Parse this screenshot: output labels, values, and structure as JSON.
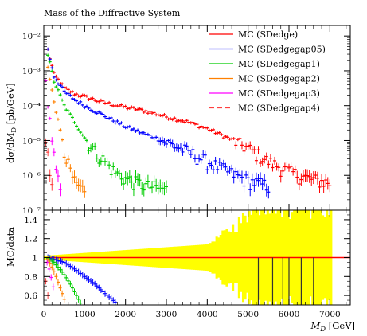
{
  "chart_data": [
    {
      "type": "scatter",
      "title": "Mass of the Diffractive System",
      "ylabel": "dσ/dM_D [pb/GeV]",
      "xlabel": "",
      "xlim": [
        0,
        7500
      ],
      "ylim": [
        1e-07,
        0.02
      ],
      "log_y": true,
      "grid": false,
      "legend_position": "top-right",
      "y_tick_labels": [
        "10⁻⁷",
        "10⁻⁶",
        "10⁻⁵",
        "10⁻⁴",
        "10⁻³",
        "10⁻²"
      ],
      "y_tick_values": [
        1e-07,
        1e-06,
        1e-05,
        0.0001,
        0.001,
        0.01
      ],
      "series": [
        {
          "name": "MC (SDedge)",
          "color": "#ff0000",
          "x": [
            100,
            250,
            500,
            750,
            1000,
            1500,
            2000,
            2500,
            3000,
            3500,
            4000,
            4500,
            5000,
            5500,
            6000,
            6500,
            7000
          ],
          "y": [
            0.004,
            0.0008,
            0.00032,
            0.00022,
            0.00018,
            0.00012,
            9e-05,
            7e-05,
            4.8e-05,
            3.5e-05,
            2.2e-05,
            1.2e-05,
            6e-06,
            2.5e-06,
            1.3e-06,
            8e-07,
            6e-07
          ]
        },
        {
          "name": "MC (SDedgegap05)",
          "color": "#0000ff",
          "x": [
            100,
            250,
            500,
            750,
            1000,
            1500,
            2000,
            2500,
            3000,
            3500,
            4000,
            4500,
            5000,
            5500
          ],
          "y": [
            0.004,
            0.0007,
            0.00025,
            0.00015,
            0.0001,
            5e-05,
            2.5e-05,
            1.5e-05,
            9e-06,
            5e-06,
            2.5e-06,
            1.3e-06,
            7e-07,
            5e-07
          ]
        },
        {
          "name": "MC (SDedgegap1)",
          "color": "#00cc00",
          "x": [
            100,
            250,
            500,
            750,
            1000,
            1250,
            1500,
            1750,
            2000,
            2500,
            3000
          ],
          "y": [
            0.003,
            0.0005,
            0.0001,
            3.5e-05,
            1.2e-05,
            5e-06,
            2.5e-06,
            1.2e-06,
            8e-07,
            5e-07,
            4e-07
          ]
        },
        {
          "name": "MC (SDedgegap2)",
          "color": "#ff8000",
          "x": [
            100,
            200,
            300,
            400,
            500,
            600,
            700,
            800,
            1000
          ],
          "y": [
            0.0012,
            0.0003,
            7e-05,
            2e-05,
            6e-06,
            2e-06,
            8e-07,
            5e-07,
            3e-07
          ]
        },
        {
          "name": "MC (SDedgegap3)",
          "color": "#ff00ff",
          "x": [
            50,
            100,
            150,
            200,
            250,
            300,
            350,
            400
          ],
          "y": [
            0.0005,
            0.0001,
            4e-05,
            1e-05,
            4e-06,
            1.5e-06,
            7e-07,
            4e-07
          ]
        },
        {
          "name": "MC (SDedgegap4)",
          "color": "#ff4040",
          "dashed": true,
          "x": [
            50,
            100,
            150,
            200
          ],
          "y": [
            1e-05,
            4e-06,
            1.5e-06,
            8e-07
          ]
        }
      ]
    },
    {
      "type": "scatter",
      "title": "",
      "ylabel": "MC/data",
      "xlabel": "M_D [GeV]",
      "xlim": [
        0,
        7500
      ],
      "ylim": [
        0.5,
        1.5
      ],
      "x_ticks": [
        0,
        1000,
        2000,
        3000,
        4000,
        5000,
        6000,
        7000
      ],
      "y_ticks": [
        0.6,
        0.8,
        1.0,
        1.2,
        1.4
      ],
      "y_tick_labels": [
        "0.6",
        "0.8",
        "1",
        "1.2",
        "1.4"
      ],
      "band_color": "#ffff00",
      "series": [
        {
          "name": "MC (SDedge)",
          "color": "#ff0000",
          "x": [
            100,
            1000,
            2000,
            3000,
            4000,
            5000,
            6000,
            7000
          ],
          "y": [
            1.0,
            1.0,
            1.0,
            1.0,
            1.0,
            1.0,
            1.0,
            1.0
          ]
        },
        {
          "name": "MC (SDedgegap05)",
          "color": "#0000ff",
          "x": [
            100,
            500,
            750,
            1000,
            1250,
            1500,
            1750
          ],
          "y": [
            1.0,
            0.95,
            0.88,
            0.8,
            0.72,
            0.62,
            0.53
          ]
        },
        {
          "name": "MC (SDedgegap1)",
          "color": "#00cc00",
          "x": [
            100,
            250,
            500,
            650,
            800,
            900
          ],
          "y": [
            0.99,
            0.95,
            0.82,
            0.72,
            0.6,
            0.52
          ]
        },
        {
          "name": "MC (SDedgegap2)",
          "color": "#ff8000",
          "x": [
            100,
            200,
            300,
            400,
            500
          ],
          "y": [
            0.98,
            0.9,
            0.8,
            0.68,
            0.56
          ]
        },
        {
          "name": "MC (SDedgegap3)",
          "color": "#ff00ff",
          "x": [
            80,
            150,
            200,
            250
          ],
          "y": [
            0.95,
            0.85,
            0.75,
            0.65
          ]
        },
        {
          "name": "MC (SDedgegap4)",
          "color": "#ff4040",
          "x": [
            50,
            100
          ],
          "y": [
            0.75,
            0.6
          ]
        }
      ]
    }
  ],
  "labels": {
    "title": "Mass of the Diffractive System",
    "ylabel_main": "dσ/dM",
    "ylabel_main_sub": "D",
    "ylabel_main_unit": " [pb/GeV]",
    "ylabel_ratio": "MC/data",
    "xlabel": "M",
    "xlabel_sub": "D",
    "xlabel_unit": " [GeV]"
  }
}
